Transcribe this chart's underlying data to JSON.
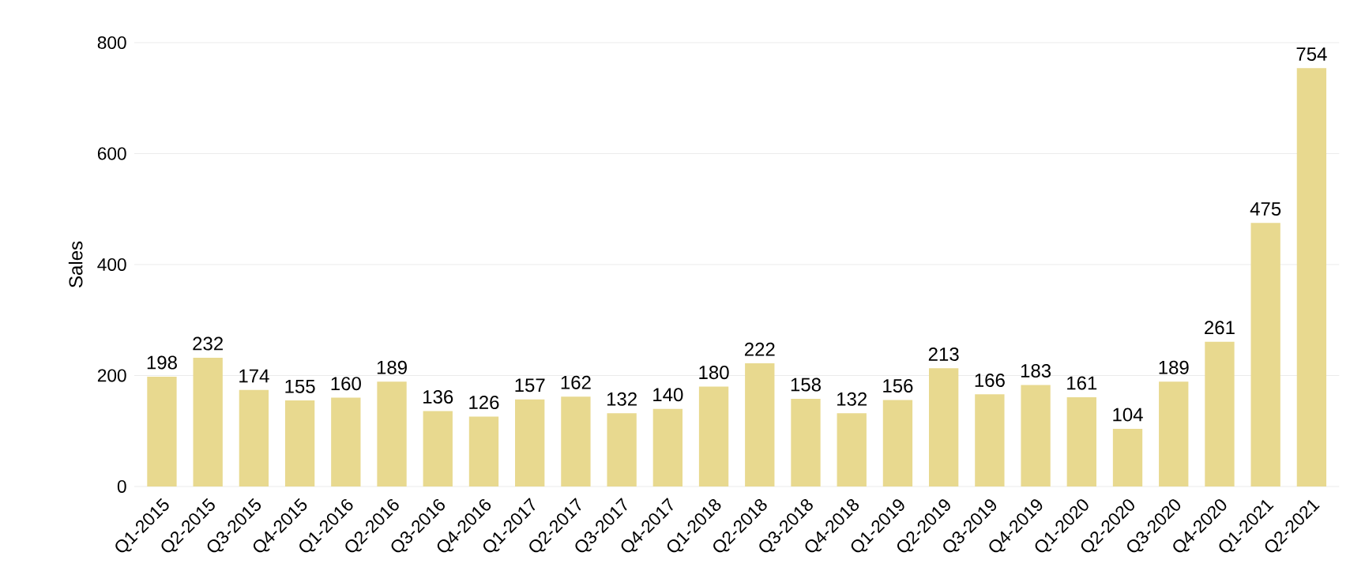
{
  "chart_data": {
    "type": "bar",
    "ylabel": "Sales",
    "categories": [
      "Q1-2015",
      "Q2-2015",
      "Q3-2015",
      "Q4-2015",
      "Q1-2016",
      "Q2-2016",
      "Q3-2016",
      "Q4-2016",
      "Q1-2017",
      "Q2-2017",
      "Q3-2017",
      "Q4-2017",
      "Q1-2018",
      "Q2-2018",
      "Q3-2018",
      "Q4-2018",
      "Q1-2019",
      "Q2-2019",
      "Q3-2019",
      "Q4-2019",
      "Q1-2020",
      "Q2-2020",
      "Q3-2020",
      "Q4-2020",
      "Q1-2021",
      "Q2-2021"
    ],
    "values": [
      198,
      232,
      174,
      155,
      160,
      189,
      136,
      126,
      157,
      162,
      132,
      140,
      180,
      222,
      158,
      132,
      156,
      213,
      166,
      183,
      161,
      104,
      189,
      261,
      475,
      754
    ],
    "color": "#e8d98f",
    "ylim": [
      0,
      800
    ],
    "yticks": [
      0,
      200,
      400,
      600,
      800
    ],
    "grid": "y",
    "data_labels": true
  }
}
